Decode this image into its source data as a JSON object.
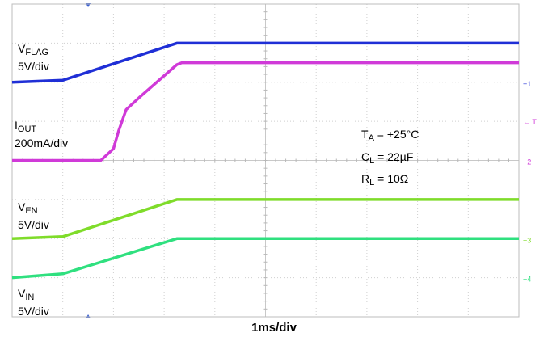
{
  "chart_data": {
    "type": "line",
    "title": "",
    "xlabel": "1ms/div",
    "ylabel": "",
    "xlim": [
      0,
      10
    ],
    "ylim": [
      0,
      8
    ],
    "grid": true,
    "conditions": [
      {
        "sym": "T",
        "sub": "A",
        "rest": " = +25°C"
      },
      {
        "sym": "C",
        "sub": "L",
        "rest": " = 22µF"
      },
      {
        "sym": "R",
        "sub": "L",
        "rest": " = 10Ω"
      }
    ],
    "series": [
      {
        "label_main": "V",
        "label_sub": "FLAG",
        "label_scale": "5V/div",
        "color": "#1f2fd6",
        "x": [
          0,
          1.0,
          3.25,
          10
        ],
        "y": [
          6.0,
          6.05,
          7.0,
          7.0
        ],
        "marker": "1"
      },
      {
        "label_main": "I",
        "label_sub": "OUT",
        "label_scale": "200mA/div",
        "color": "#d03ad8",
        "x": [
          0,
          1.75,
          2.0,
          2.1,
          2.25,
          2.5,
          3.25,
          3.35,
          10
        ],
        "y": [
          4.0,
          4.0,
          4.3,
          4.75,
          5.3,
          5.6,
          6.45,
          6.5,
          6.5
        ],
        "marker": "2"
      },
      {
        "label_main": "V",
        "label_sub": "EN",
        "label_scale": "5V/div",
        "color": "#7fdc2a",
        "x": [
          0,
          1.0,
          3.25,
          10
        ],
        "y": [
          2.0,
          2.05,
          3.0,
          3.0
        ],
        "marker": "3"
      },
      {
        "label_main": "V",
        "label_sub": "IN",
        "label_scale": "5V/div",
        "color": "#2fe07f",
        "x": [
          0,
          1.0,
          3.25,
          10
        ],
        "y": [
          1.0,
          1.1,
          2.0,
          2.0
        ],
        "marker": "4"
      }
    ]
  }
}
